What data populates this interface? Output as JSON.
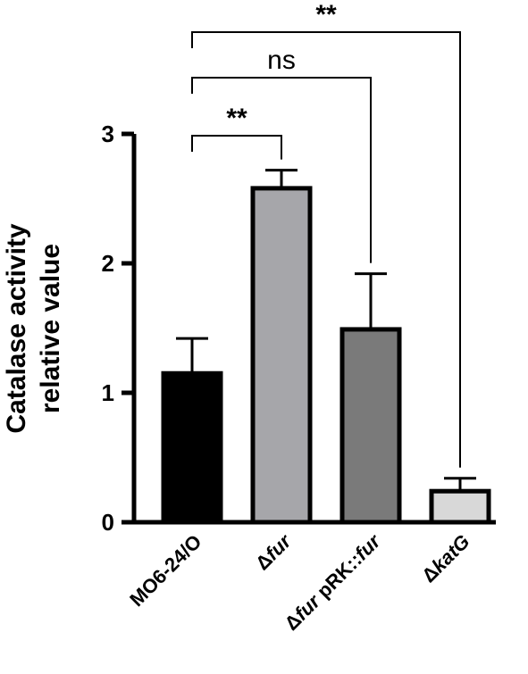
{
  "chart_data": {
    "type": "bar",
    "ylabel_line1": "Catalase  activity",
    "ylabel_line2": "relative  value",
    "ylim": [
      0,
      3
    ],
    "yticks": [
      "0",
      "1",
      "2",
      "3"
    ],
    "categories": [
      {
        "parts": [
          {
            "text": "MO6-24/O",
            "italic": false
          }
        ]
      },
      {
        "parts": [
          {
            "text": "Δ",
            "italic": false
          },
          {
            "text": "fur",
            "italic": true
          }
        ]
      },
      {
        "parts": [
          {
            "text": "Δ",
            "italic": false
          },
          {
            "text": "fur",
            "italic": true
          },
          {
            "text": " pRK::",
            "italic": false
          },
          {
            "text": "fur",
            "italic": true
          }
        ]
      },
      {
        "parts": [
          {
            "text": "Δ",
            "italic": false
          },
          {
            "text": "katG",
            "italic": true
          }
        ]
      }
    ],
    "values": [
      1.15,
      2.58,
      1.49,
      0.24
    ],
    "errors": [
      0.27,
      0.14,
      0.43,
      0.1
    ],
    "colors": [
      "#000000",
      "#a6a6aa",
      "#7a7a7a",
      "#d8d8d8"
    ],
    "comparisons": [
      {
        "from": 0,
        "to": 1,
        "label": "**",
        "bold": true
      },
      {
        "from": 0,
        "to": 2,
        "label": "ns",
        "bold": false
      },
      {
        "from": 0,
        "to": 3,
        "label": "**",
        "bold": true
      }
    ]
  }
}
